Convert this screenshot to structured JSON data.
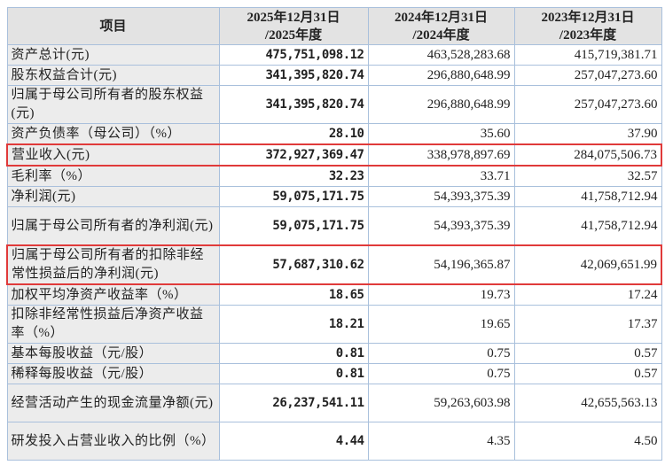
{
  "header": {
    "item": "项目",
    "col2025": [
      "2025年12月31日",
      "/2025年度"
    ],
    "col2024": [
      "2024年12月31日",
      "/2024年度"
    ],
    "col2023": [
      "2023年12月31日",
      "/2023年度"
    ]
  },
  "rows": [
    {
      "label": "资产总计(元)",
      "v2025": "475,751,098.12",
      "v2024": "463,528,283.68",
      "v2023": "415,719,381.71"
    },
    {
      "label": "股东权益合计(元)",
      "v2025": "341,395,820.74",
      "v2024": "296,880,648.99",
      "v2023": "257,047,273.60"
    },
    {
      "label": "归属于母公司所有者的股东权益(元)",
      "v2025": "341,395,820.74",
      "v2024": "296,880,648.99",
      "v2023": "257,047,273.60"
    },
    {
      "label": "资产负债率（母公司）（%）",
      "v2025": "28.10",
      "v2024": "35.60",
      "v2023": "37.90"
    },
    {
      "label": "营业收入(元)",
      "v2025": "372,927,369.47",
      "v2024": "338,978,897.69",
      "v2023": "284,075,506.73"
    },
    {
      "label": "毛利率（%）",
      "v2025": "32.23",
      "v2024": "33.71",
      "v2023": "32.57"
    },
    {
      "label": "净利润(元)",
      "v2025": "59,075,171.75",
      "v2024": "54,393,375.39",
      "v2023": "41,758,712.94"
    },
    {
      "label": "归属于母公司所有者的净利润(元)",
      "v2025": "59,075,171.75",
      "v2024": "54,393,375.39",
      "v2023": "41,758,712.94"
    },
    {
      "label": "归属于母公司所有者的扣除非经常性损益后的净利润(元)",
      "v2025": "57,687,310.62",
      "v2024": "54,196,365.87",
      "v2023": "42,069,651.99"
    },
    {
      "label": "加权平均净资产收益率（%）",
      "v2025": "18.65",
      "v2024": "19.73",
      "v2023": "17.24"
    },
    {
      "label": "扣除非经常性损益后净资产收益率（%）",
      "v2025": "18.21",
      "v2024": "19.65",
      "v2023": "17.37"
    },
    {
      "label": "基本每股收益（元/股）",
      "v2025": "0.81",
      "v2024": "0.75",
      "v2023": "0.57"
    },
    {
      "label": "稀释每股收益（元/股）",
      "v2025": "0.81",
      "v2024": "0.75",
      "v2023": "0.57"
    },
    {
      "label": "经营活动产生的现金流量净额(元)",
      "v2025": "26,237,541.11",
      "v2024": "59,263,603.98",
      "v2023": "42,655,563.13"
    },
    {
      "label": "研发投入占营业收入的比例（%）",
      "v2025": "4.44",
      "v2024": "4.35",
      "v2023": "4.50"
    }
  ],
  "highlight_color": "#e03a3a"
}
